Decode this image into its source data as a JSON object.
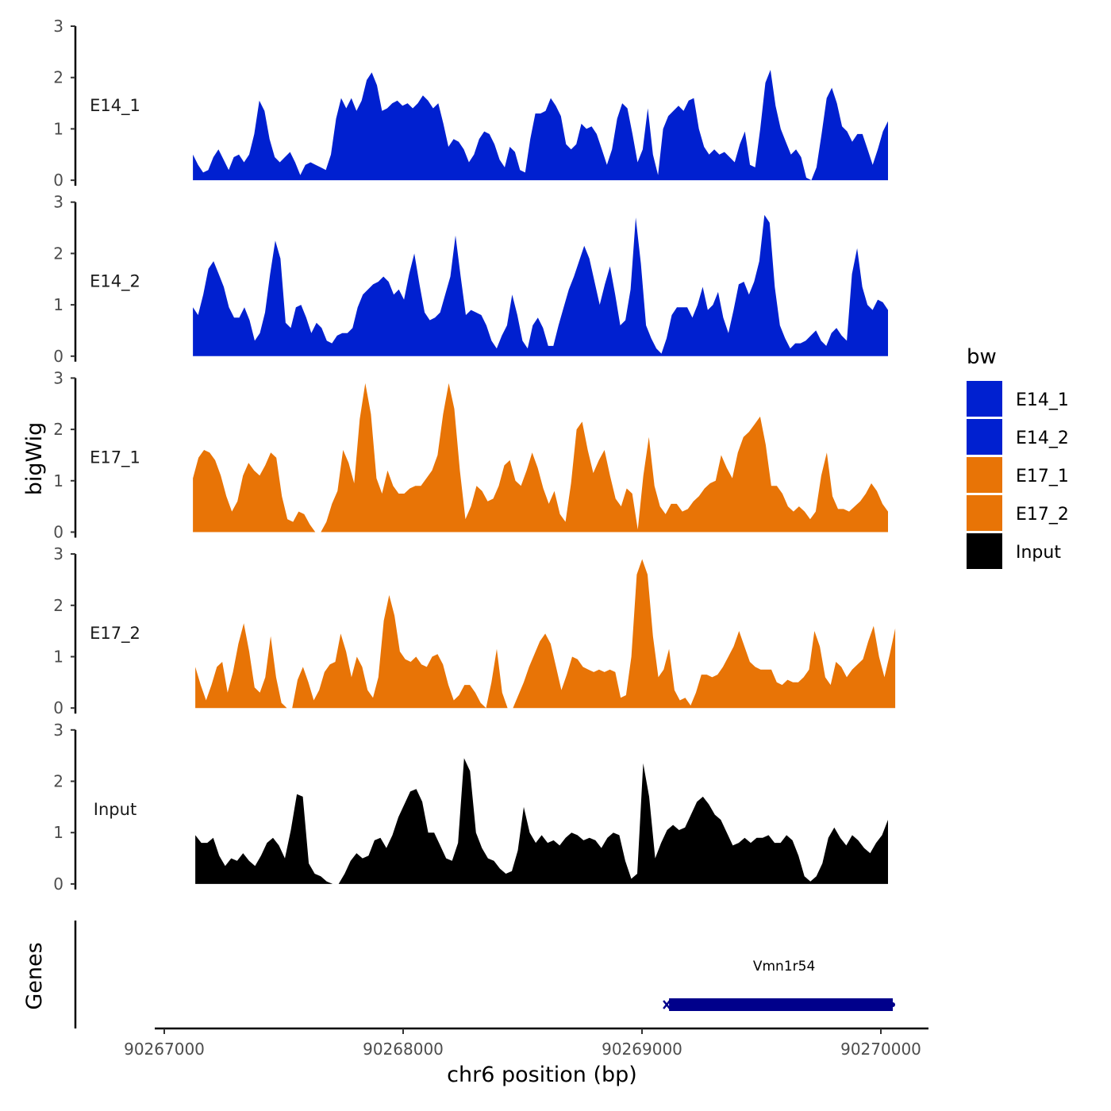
{
  "chart_data": {
    "type": "area",
    "y_axis_title": "bigWig",
    "x_axis_title": "chr6 position (bp)",
    "genes_axis_title": "Genes",
    "x_range": [
      90267000,
      90270200
    ],
    "y_range": [
      0,
      3
    ],
    "y_ticks": [
      "0",
      "1",
      "2",
      "3"
    ],
    "x_ticks": [
      {
        "value": 90267000,
        "label": "90267000"
      },
      {
        "value": 90268000,
        "label": "90268000"
      },
      {
        "value": 90269000,
        "label": "90269000"
      },
      {
        "value": 90270000,
        "label": "90270000"
      }
    ],
    "legend": {
      "title": "bw",
      "entries": [
        {
          "label": "E14_1",
          "color": "#0020D0"
        },
        {
          "label": "E14_2",
          "color": "#0020D0"
        },
        {
          "label": "E17_1",
          "color": "#E87406"
        },
        {
          "label": "E17_2",
          "color": "#E87406"
        },
        {
          "label": "Input",
          "color": "#000000"
        }
      ]
    },
    "series": [
      {
        "name": "E14_1",
        "label": "E14_1",
        "color": "#0020D0",
        "start": 90267120,
        "end": 90270030,
        "values": [
          0.5,
          0.3,
          0.15,
          0.2,
          0.45,
          0.6,
          0.4,
          0.2,
          0.45,
          0.5,
          0.35,
          0.5,
          0.9,
          1.55,
          1.35,
          0.8,
          0.45,
          0.35,
          0.45,
          0.55,
          0.35,
          0.1,
          0.3,
          0.35,
          0.3,
          0.25,
          0.2,
          0.5,
          1.2,
          1.6,
          1.4,
          1.6,
          1.35,
          1.55,
          1.95,
          2.1,
          1.85,
          1.35,
          1.4,
          1.5,
          1.55,
          1.45,
          1.5,
          1.4,
          1.5,
          1.65,
          1.55,
          1.4,
          1.5,
          1.1,
          0.65,
          0.8,
          0.75,
          0.6,
          0.35,
          0.5,
          0.8,
          0.95,
          0.9,
          0.7,
          0.4,
          0.25,
          0.65,
          0.55,
          0.2,
          0.15,
          0.8,
          1.3,
          1.3,
          1.35,
          1.6,
          1.45,
          1.25,
          0.7,
          0.6,
          0.7,
          1.1,
          1.0,
          1.05,
          0.9,
          0.6,
          0.3,
          0.6,
          1.2,
          1.5,
          1.4,
          0.9,
          0.35,
          0.6,
          1.4,
          0.5,
          0.1,
          1.0,
          1.25,
          1.35,
          1.45,
          1.35,
          1.55,
          1.6,
          1.0,
          0.65,
          0.5,
          0.6,
          0.5,
          0.55,
          0.45,
          0.35,
          0.7,
          0.95,
          0.3,
          0.25,
          1.0,
          1.9,
          2.15,
          1.45,
          1.0,
          0.75,
          0.5,
          0.6,
          0.45,
          0.05,
          0.0,
          0.25,
          0.9,
          1.6,
          1.8,
          1.5,
          1.05,
          0.95,
          0.75,
          0.9,
          0.9,
          0.6,
          0.3,
          0.6,
          0.95,
          1.15
        ]
      },
      {
        "name": "E14_2",
        "label": "E14_2",
        "color": "#0020D0",
        "start": 90267120,
        "end": 90270030,
        "values": [
          0.95,
          0.8,
          1.2,
          1.7,
          1.85,
          1.6,
          1.35,
          0.95,
          0.75,
          0.75,
          0.95,
          0.7,
          0.3,
          0.45,
          0.85,
          1.6,
          2.25,
          1.9,
          0.65,
          0.55,
          0.95,
          1.0,
          0.75,
          0.45,
          0.65,
          0.55,
          0.3,
          0.25,
          0.4,
          0.45,
          0.45,
          0.55,
          0.95,
          1.2,
          1.3,
          1.4,
          1.45,
          1.55,
          1.45,
          1.2,
          1.3,
          1.1,
          1.6,
          2.0,
          1.4,
          0.85,
          0.7,
          0.75,
          0.85,
          1.2,
          1.55,
          2.35,
          1.55,
          0.8,
          0.9,
          0.85,
          0.8,
          0.6,
          0.3,
          0.15,
          0.4,
          0.6,
          1.2,
          0.8,
          0.3,
          0.15,
          0.6,
          0.75,
          0.55,
          0.2,
          0.2,
          0.6,
          0.95,
          1.3,
          1.55,
          1.85,
          2.15,
          1.9,
          1.45,
          1.0,
          1.4,
          1.75,
          1.2,
          0.6,
          0.7,
          1.3,
          2.7,
          1.8,
          0.6,
          0.35,
          0.15,
          0.05,
          0.35,
          0.8,
          0.95,
          0.95,
          0.95,
          0.75,
          1.0,
          1.35,
          0.9,
          1.0,
          1.25,
          0.75,
          0.45,
          0.9,
          1.4,
          1.45,
          1.2,
          1.45,
          1.85,
          2.75,
          2.6,
          1.35,
          0.6,
          0.35,
          0.15,
          0.25,
          0.25,
          0.3,
          0.4,
          0.5,
          0.3,
          0.2,
          0.45,
          0.55,
          0.4,
          0.3,
          1.6,
          2.1,
          1.35,
          1.0,
          0.9,
          1.1,
          1.05,
          0.9
        ]
      },
      {
        "name": "E17_1",
        "label": "E17_1",
        "color": "#E87406",
        "start": 90267120,
        "end": 90270030,
        "values": [
          1.05,
          1.45,
          1.6,
          1.55,
          1.4,
          1.1,
          0.7,
          0.4,
          0.6,
          1.1,
          1.35,
          1.2,
          1.1,
          1.3,
          1.55,
          1.45,
          0.7,
          0.25,
          0.2,
          0.4,
          0.35,
          0.15,
          0.0,
          0.0,
          0.2,
          0.55,
          0.8,
          1.6,
          1.35,
          0.95,
          2.2,
          2.9,
          2.3,
          1.05,
          0.75,
          1.2,
          0.9,
          0.75,
          0.75,
          0.85,
          0.9,
          0.9,
          1.05,
          1.2,
          1.5,
          2.3,
          2.9,
          2.4,
          1.2,
          0.25,
          0.5,
          0.9,
          0.8,
          0.6,
          0.65,
          0.9,
          1.3,
          1.4,
          1.0,
          0.9,
          1.2,
          1.55,
          1.25,
          0.85,
          0.55,
          0.8,
          0.35,
          0.2,
          0.95,
          2.0,
          2.15,
          1.6,
          1.15,
          1.4,
          1.6,
          1.1,
          0.65,
          0.5,
          0.85,
          0.75,
          0.05,
          1.1,
          1.85,
          0.9,
          0.5,
          0.35,
          0.55,
          0.55,
          0.4,
          0.45,
          0.6,
          0.7,
          0.85,
          0.95,
          1.0,
          1.5,
          1.25,
          1.05,
          1.55,
          1.85,
          1.95,
          2.1,
          2.25,
          1.7,
          0.9,
          0.9,
          0.75,
          0.5,
          0.4,
          0.5,
          0.4,
          0.25,
          0.4,
          1.1,
          1.55,
          0.7,
          0.45,
          0.45,
          0.4,
          0.5,
          0.6,
          0.75,
          0.95,
          0.8,
          0.55,
          0.4
        ]
      },
      {
        "name": "E17_2",
        "label": "E17_2",
        "color": "#E87406",
        "start": 90267130,
        "end": 90270060,
        "values": [
          0.8,
          0.45,
          0.15,
          0.45,
          0.8,
          0.9,
          0.3,
          0.7,
          1.25,
          1.65,
          1.1,
          0.4,
          0.3,
          0.6,
          1.4,
          0.6,
          0.1,
          0.0,
          0.0,
          0.55,
          0.8,
          0.5,
          0.15,
          0.35,
          0.7,
          0.85,
          0.9,
          1.45,
          1.1,
          0.6,
          1.0,
          0.8,
          0.35,
          0.2,
          0.6,
          1.7,
          2.2,
          1.8,
          1.1,
          0.95,
          0.9,
          1.0,
          0.85,
          0.8,
          1.0,
          1.05,
          0.85,
          0.45,
          0.15,
          0.25,
          0.45,
          0.45,
          0.3,
          0.1,
          0.0,
          0.5,
          1.15,
          0.3,
          0.0,
          0.0,
          0.25,
          0.5,
          0.8,
          1.05,
          1.3,
          1.45,
          1.25,
          0.8,
          0.35,
          0.65,
          1.0,
          0.95,
          0.8,
          0.75,
          0.7,
          0.75,
          0.7,
          0.75,
          0.7,
          0.2,
          0.25,
          1.0,
          2.6,
          2.9,
          2.6,
          1.4,
          0.6,
          0.75,
          1.15,
          0.35,
          0.15,
          0.2,
          0.05,
          0.3,
          0.65,
          0.65,
          0.6,
          0.65,
          0.8,
          1.0,
          1.2,
          1.5,
          1.2,
          0.9,
          0.8,
          0.75,
          0.75,
          0.75,
          0.5,
          0.45,
          0.55,
          0.5,
          0.5,
          0.6,
          0.75,
          1.5,
          1.2,
          0.6,
          0.45,
          0.9,
          0.8,
          0.6,
          0.75,
          0.85,
          0.95,
          1.3,
          1.6,
          1.0,
          0.6,
          1.05,
          1.55
        ]
      },
      {
        "name": "Input",
        "label": "Input",
        "color": "#000000",
        "start": 90267130,
        "end": 90270030,
        "values": [
          0.95,
          0.8,
          0.8,
          0.9,
          0.55,
          0.35,
          0.5,
          0.45,
          0.6,
          0.45,
          0.35,
          0.55,
          0.8,
          0.9,
          0.75,
          0.5,
          1.05,
          1.75,
          1.7,
          0.4,
          0.2,
          0.15,
          0.05,
          0.0,
          0.0,
          0.2,
          0.45,
          0.6,
          0.5,
          0.55,
          0.85,
          0.9,
          0.7,
          0.95,
          1.3,
          1.55,
          1.8,
          1.85,
          1.6,
          1.0,
          1.0,
          0.75,
          0.5,
          0.45,
          0.8,
          2.45,
          2.2,
          1.0,
          0.7,
          0.5,
          0.45,
          0.3,
          0.2,
          0.25,
          0.65,
          1.5,
          1.0,
          0.8,
          0.95,
          0.8,
          0.85,
          0.75,
          0.9,
          1.0,
          0.95,
          0.85,
          0.9,
          0.85,
          0.7,
          0.9,
          1.0,
          0.95,
          0.45,
          0.1,
          0.2,
          2.35,
          1.7,
          0.5,
          0.8,
          1.05,
          1.15,
          1.05,
          1.1,
          1.35,
          1.6,
          1.7,
          1.55,
          1.35,
          1.25,
          1.0,
          0.75,
          0.8,
          0.9,
          0.8,
          0.9,
          0.9,
          0.95,
          0.8,
          0.8,
          0.95,
          0.85,
          0.55,
          0.15,
          0.05,
          0.15,
          0.4,
          0.9,
          1.1,
          0.9,
          0.75,
          0.95,
          0.85,
          0.7,
          0.6,
          0.8,
          0.95,
          1.25
        ]
      }
    ],
    "genes": [
      {
        "name": "Vmn1r54",
        "start": 90269100,
        "end": 90270050,
        "strand": "-",
        "color": "#00008B"
      }
    ]
  }
}
